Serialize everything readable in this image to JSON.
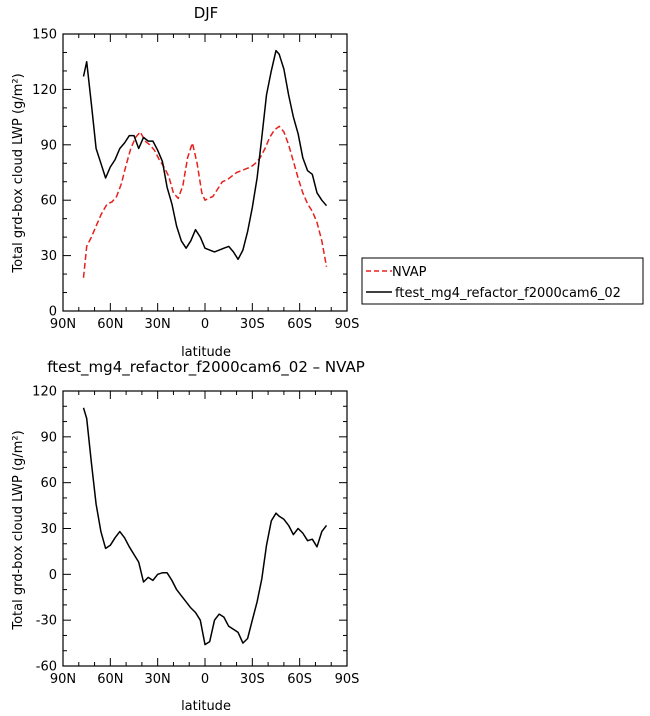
{
  "chart_data": [
    {
      "type": "line",
      "title": "DJF",
      "xlabel": "latitude",
      "ylabel": "Total grd-box cloud LWP (g/m²)",
      "x_axis": "latitude, 90N on left to 90S on right",
      "xlim": [
        90,
        -90
      ],
      "ylim": [
        0,
        150
      ],
      "xtick_values": [
        90,
        60,
        30,
        0,
        -30,
        -60,
        -90
      ],
      "xtick_labels": [
        "90N",
        "60N",
        "30N",
        "0",
        "30S",
        "60S",
        "90S"
      ],
      "ytick_values": [
        0,
        30,
        60,
        90,
        120,
        150
      ],
      "ytick_labels": [
        "0",
        "30",
        "60",
        "90",
        "120",
        "150"
      ],
      "legend": "outside right",
      "series": [
        {
          "name": "NVAP",
          "color": "#e8201e",
          "dash": "dashed",
          "x": [
            77,
            75,
            72,
            69,
            66,
            64,
            62,
            59,
            56,
            53,
            50,
            47,
            44,
            41,
            38,
            35,
            32,
            29,
            26,
            23,
            20,
            17,
            14,
            11,
            8,
            5,
            2,
            0,
            -2,
            -5,
            -8,
            -11,
            -14,
            -17,
            -20,
            -23,
            -26,
            -29,
            -32,
            -35,
            -38,
            -41,
            -44,
            -47,
            -50,
            -53,
            -56,
            -59,
            -62,
            -65,
            -68,
            -71,
            -74,
            -77
          ],
          "y": [
            18,
            35,
            40,
            46,
            52,
            55,
            58,
            59,
            62,
            69,
            79,
            88,
            94,
            97,
            92,
            90,
            87,
            82,
            78,
            73,
            64,
            61,
            68,
            83,
            91,
            80,
            64,
            60,
            61,
            62,
            66,
            70,
            71,
            73,
            75,
            76,
            77,
            78,
            80,
            83,
            88,
            94,
            98,
            100,
            97,
            90,
            81,
            72,
            64,
            58,
            54,
            48,
            38,
            24
          ]
        },
        {
          "name": "ftest_mg4_refactor_f2000cam6_02",
          "color": "#000000",
          "dash": "solid",
          "x": [
            77,
            75,
            72,
            69,
            66,
            63,
            60,
            57,
            54,
            51,
            48,
            45,
            42,
            39,
            36,
            33,
            30,
            27,
            24,
            21,
            18,
            15,
            12,
            9,
            6,
            3,
            0,
            -3,
            -6,
            -9,
            -12,
            -15,
            -18,
            -21,
            -24,
            -27,
            -30,
            -33,
            -36,
            -39,
            -42,
            -45,
            -47,
            -50,
            -53,
            -56,
            -59,
            -62,
            -65,
            -68,
            -71,
            -74,
            -77
          ],
          "y": [
            127,
            135,
            112,
            88,
            80,
            72,
            78,
            82,
            88,
            91,
            95,
            95,
            88,
            94,
            92,
            92,
            87,
            81,
            67,
            58,
            46,
            38,
            34,
            38,
            44,
            40,
            34,
            33,
            32,
            33,
            34,
            35,
            32,
            28,
            33,
            43,
            56,
            72,
            94,
            117,
            130,
            141,
            139,
            131,
            117,
            105,
            96,
            83,
            76,
            74,
            64,
            60,
            57
          ]
        }
      ]
    },
    {
      "type": "line",
      "title": "ftest_mg4_refactor_f2000cam6_02 – NVAP",
      "xlabel": "latitude",
      "ylabel": "Total grd-box cloud LWP (g/m²)",
      "x_axis": "latitude, 90N on left to 90S on right",
      "xlim": [
        90,
        -90
      ],
      "ylim": [
        -60,
        120
      ],
      "xtick_values": [
        90,
        60,
        30,
        0,
        -30,
        -60,
        -90
      ],
      "xtick_labels": [
        "90N",
        "60N",
        "30N",
        "0",
        "30S",
        "60S",
        "90S"
      ],
      "ytick_values": [
        -60,
        -30,
        0,
        30,
        60,
        90,
        120
      ],
      "ytick_labels": [
        "-60",
        "-30",
        "0",
        "30",
        "60",
        "90",
        "120"
      ],
      "series": [
        {
          "color": "#000000",
          "dash": "solid",
          "x": [
            77,
            75,
            72,
            69,
            66,
            63,
            60,
            57,
            54,
            51,
            48,
            45,
            42,
            39,
            36,
            33,
            30,
            27,
            24,
            21,
            18,
            15,
            12,
            9,
            6,
            3,
            0,
            -3,
            -6,
            -9,
            -12,
            -15,
            -18,
            -21,
            -24,
            -27,
            -30,
            -33,
            -36,
            -39,
            -42,
            -45,
            -47,
            -50,
            -53,
            -56,
            -59,
            -62,
            -65,
            -68,
            -71,
            -74,
            -77
          ],
          "y": [
            109,
            102,
            73,
            46,
            28,
            17,
            19,
            24,
            28,
            24,
            18,
            13,
            8,
            -5,
            -2,
            -4,
            0,
            1,
            1,
            -4,
            -10,
            -14,
            -18,
            -22,
            -25,
            -30,
            -46,
            -44,
            -30,
            -26,
            -28,
            -34,
            -36,
            -38,
            -45,
            -42,
            -30,
            -18,
            -3,
            19,
            35,
            40,
            38,
            36,
            32,
            26,
            30,
            27,
            22,
            23,
            18,
            28,
            32
          ]
        }
      ]
    }
  ]
}
